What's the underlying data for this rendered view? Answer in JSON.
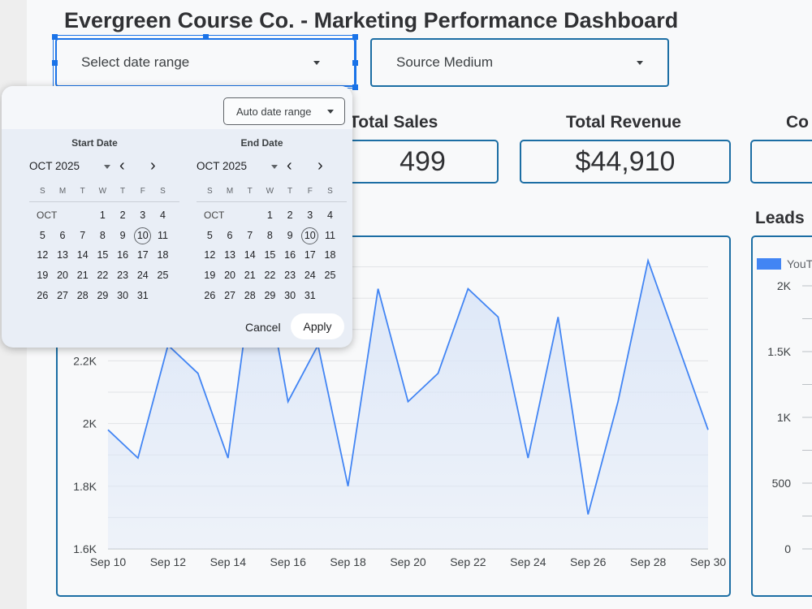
{
  "title": "Evergreen Course Co. - Marketing Performance Dashboard",
  "filters": {
    "date_range_label": "Select date range",
    "source_medium_label": "Source Medium"
  },
  "kpis": [
    {
      "label": "Total Sales",
      "value": "499"
    },
    {
      "label": "Total Revenue",
      "value": "$44,910"
    },
    {
      "label": "Co",
      "value": ""
    }
  ],
  "leads_section": {
    "title": "Leads",
    "legend": "YouT"
  },
  "date_picker": {
    "auto_range_label": "Auto date range",
    "start": {
      "heading": "Start Date",
      "month_label": "OCT 2025",
      "grid_month": "OCT"
    },
    "end": {
      "heading": "End Date",
      "month_label": "OCT 2025",
      "grid_month": "OCT"
    },
    "weekdays": [
      "S",
      "M",
      "T",
      "W",
      "T",
      "F",
      "S"
    ],
    "weeks": [
      [
        "",
        "",
        "",
        "1",
        "2",
        "3",
        "4"
      ],
      [
        "5",
        "6",
        "7",
        "8",
        "9",
        "10",
        "11"
      ],
      [
        "12",
        "13",
        "14",
        "15",
        "16",
        "17",
        "18"
      ],
      [
        "19",
        "20",
        "21",
        "22",
        "23",
        "24",
        "25"
      ],
      [
        "26",
        "27",
        "28",
        "29",
        "30",
        "31",
        ""
      ]
    ],
    "today": "10",
    "cancel_label": "Cancel",
    "apply_label": "Apply",
    "prev_glyph": "‹",
    "next_glyph": "›"
  },
  "colors": {
    "accent": "#1c6ea4",
    "line": "#4285f4",
    "fill": "#dbe6f8",
    "selection": "#1a73e8"
  },
  "chart_data": [
    {
      "type": "area",
      "x": [
        "Sep 10",
        "Sep 11",
        "Sep 12",
        "Sep 13",
        "Sep 14",
        "Sep 15",
        "Sep 16",
        "Sep 17",
        "Sep 18",
        "Sep 19",
        "Sep 20",
        "Sep 21",
        "Sep 22",
        "Sep 23",
        "Sep 24",
        "Sep 25",
        "Sep 26",
        "Sep 27",
        "Sep 28",
        "Sep 29",
        "Sep 30"
      ],
      "values": [
        1980,
        1890,
        2250,
        2160,
        1890,
        2600,
        2070,
        2250,
        1800,
        2430,
        2070,
        2160,
        2430,
        2340,
        1890,
        2340,
        1710,
        2070,
        2520,
        2250,
        1980
      ],
      "x_tick_labels": [
        "Sep 10",
        "Sep 12",
        "Sep 14",
        "Sep 16",
        "Sep 18",
        "Sep 20",
        "Sep 22",
        "Sep 24",
        "Sep 26",
        "Sep 28",
        "Sep 30"
      ],
      "y_tick_labels": [
        "1.6K",
        "1.8K",
        "2K",
        "2.2K"
      ],
      "ylim": [
        1600,
        2600
      ],
      "grid": true
    },
    {
      "type": "bar",
      "series": [
        {
          "name": "YouT",
          "values": []
        }
      ],
      "y_tick_labels": [
        "0",
        "500",
        "1K",
        "1.5K",
        "2K"
      ],
      "ylim": [
        0,
        2000
      ],
      "legend": "top-left"
    }
  ]
}
